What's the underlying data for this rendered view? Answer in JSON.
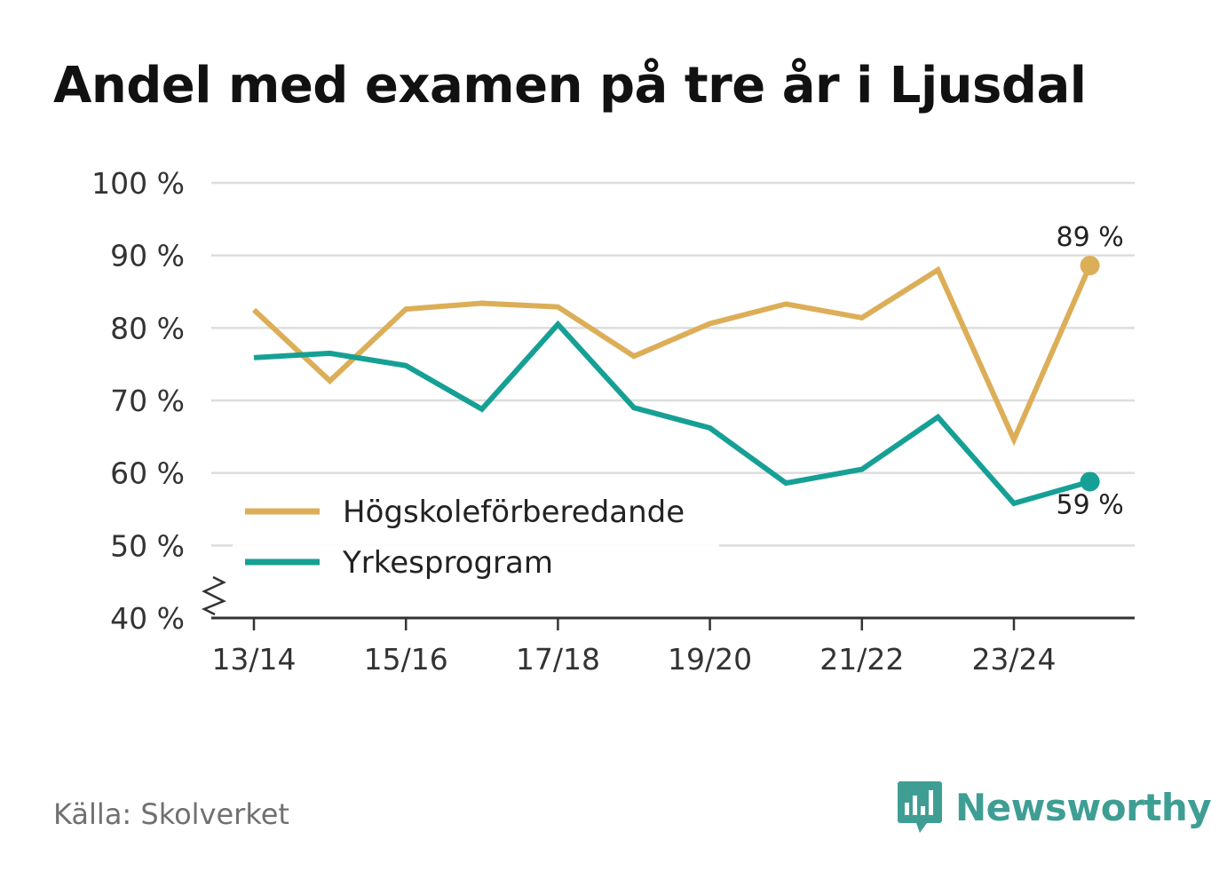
{
  "title": "Andel med examen på tre år i Ljusdal",
  "source": "Källa: Skolverket",
  "brand": "Newsworthy",
  "colors": {
    "series_a": "#dcae58",
    "series_b": "#16a095",
    "grid": "#dddddd",
    "axis": "#333333",
    "brand": "#3f9e94"
  },
  "chart_data": {
    "type": "line",
    "title": "Andel med examen på tre år i Ljusdal",
    "xlabel": "",
    "ylabel": "",
    "x": [
      "13/14",
      "14/15",
      "15/16",
      "16/17",
      "17/18",
      "18/19",
      "19/20",
      "20/21",
      "21/22",
      "22/23",
      "23/24",
      "24/25"
    ],
    "x_tick_labels": [
      "13/14",
      "15/16",
      "17/18",
      "19/20",
      "21/22",
      "23/24"
    ],
    "y_tick_labels": [
      "40 %",
      "50 %",
      "60 %",
      "70 %",
      "80 %",
      "90 %",
      "100 %"
    ],
    "y_ticks": [
      40,
      50,
      60,
      70,
      80,
      90,
      100
    ],
    "ylim": [
      40,
      100
    ],
    "grid": true,
    "legend_position": "bottom-left",
    "series": [
      {
        "name": "Högskoleförberedande",
        "color": "#dcae58",
        "values": [
          82.5,
          72.7,
          82.6,
          83.4,
          82.9,
          76.1,
          80.6,
          83.3,
          81.4,
          88.0,
          64.6,
          88.6
        ],
        "end_label": "89 %",
        "end_label_position": "above"
      },
      {
        "name": "Yrkesprogram",
        "color": "#16a095",
        "values": [
          75.9,
          76.5,
          74.8,
          68.8,
          80.5,
          69.0,
          66.2,
          58.6,
          60.5,
          67.7,
          55.8,
          58.8
        ],
        "end_label": "59 %",
        "end_label_position": "below"
      }
    ]
  }
}
